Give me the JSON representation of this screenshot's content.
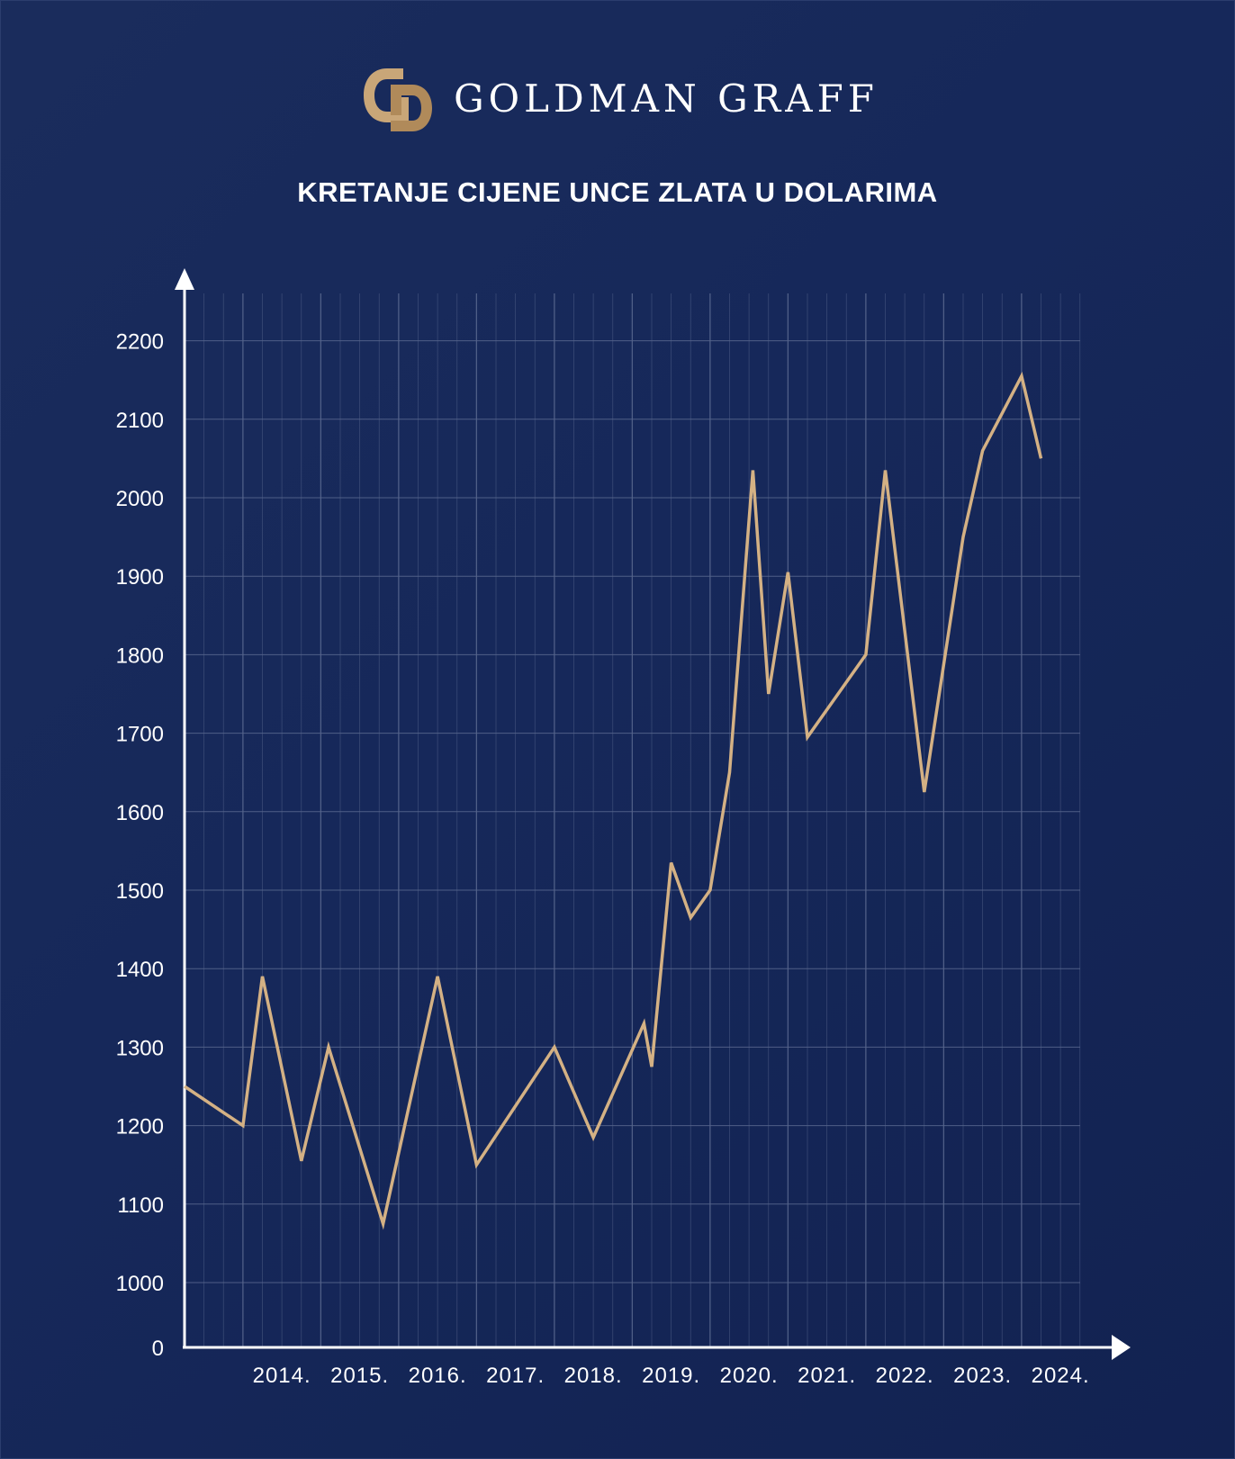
{
  "brand": {
    "name": "GOLDMAN GRAFF",
    "logo_color": "#c9a678",
    "logo_shadow": "#8e6f48"
  },
  "chart_data": {
    "type": "line",
    "title": "KRETANJE CIJENE UNCE ZLATA U DOLARIMA",
    "xlabel": "",
    "ylabel": "",
    "x_tick_labels": [
      "2014.",
      "2015.",
      "2016.",
      "2017.",
      "2018.",
      "2019.",
      "2020.",
      "2021.",
      "2022.",
      "2023.",
      "2024."
    ],
    "y_tick_labels": [
      "0",
      "1000",
      "1100",
      "1200",
      "1300",
      "1400",
      "1500",
      "1600",
      "1700",
      "1800",
      "1900",
      "2000",
      "2100",
      "2200"
    ],
    "xlim": [
      2013.25,
      2024.75
    ],
    "ylim": [
      0,
      2200
    ],
    "y_axis_break": "0 to 1000 compressed into one grid step",
    "grid": true,
    "line_color": "#d4b184",
    "background_color": "#17295a",
    "grid_color": "#56658c",
    "series": [
      {
        "points": [
          [
            2013.25,
            1250
          ],
          [
            2014.0,
            1200
          ],
          [
            2014.25,
            1390
          ],
          [
            2014.75,
            1155
          ],
          [
            2015.1,
            1300
          ],
          [
            2015.8,
            1075
          ],
          [
            2016.5,
            1390
          ],
          [
            2017.0,
            1150
          ],
          [
            2018.0,
            1300
          ],
          [
            2018.5,
            1185
          ],
          [
            2019.15,
            1330
          ],
          [
            2019.25,
            1275
          ],
          [
            2019.5,
            1535
          ],
          [
            2019.75,
            1465
          ],
          [
            2020.0,
            1500
          ],
          [
            2020.25,
            1650
          ],
          [
            2020.55,
            2035
          ],
          [
            2020.75,
            1750
          ],
          [
            2021.0,
            1905
          ],
          [
            2021.25,
            1695
          ],
          [
            2022.0,
            1800
          ],
          [
            2022.25,
            2035
          ],
          [
            2022.75,
            1625
          ],
          [
            2023.25,
            1950
          ],
          [
            2023.5,
            2060
          ],
          [
            2024.0,
            2155
          ],
          [
            2024.25,
            2050
          ]
        ]
      }
    ]
  }
}
